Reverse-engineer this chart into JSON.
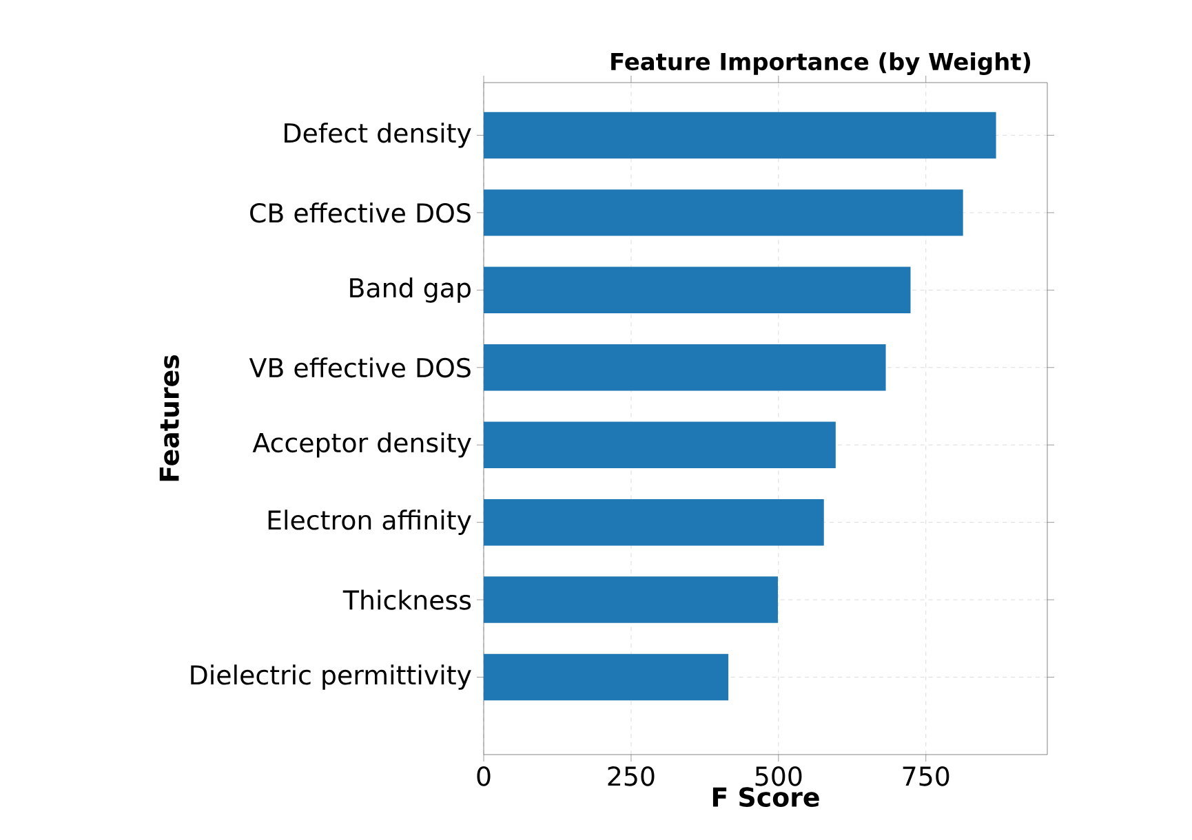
{
  "chart_data": {
    "type": "bar",
    "orientation": "horizontal",
    "title": "Feature Importance (by Weight)",
    "xlabel": "F Score",
    "ylabel": "Features",
    "categories": [
      "Defect density",
      "CB effective DOS",
      "Band gap",
      "VB effective DOS",
      "Acceptor density",
      "Electron affinity",
      "Thickness",
      "Dielectric permittivity"
    ],
    "values": [
      869,
      813,
      724,
      682,
      597,
      577,
      499,
      415
    ],
    "color": "#1f77b4",
    "xlim": [
      0,
      956
    ],
    "xticks": [
      0,
      250,
      500,
      750
    ],
    "grid": true
  }
}
